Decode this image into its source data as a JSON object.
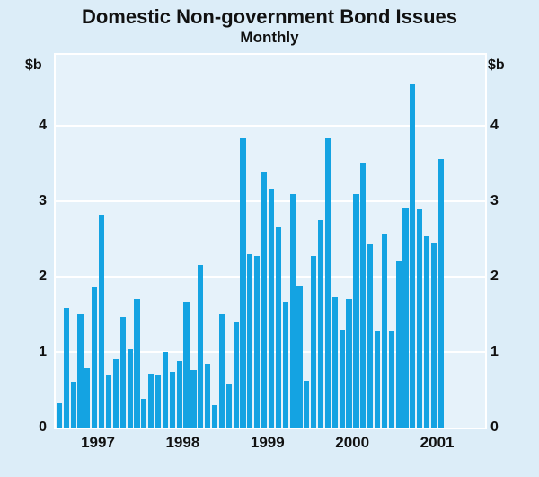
{
  "header": {
    "title": "Domestic Non-government Bond Issues",
    "subtitle": "Monthly"
  },
  "axes": {
    "left_unit": "$b",
    "right_unit": "$b"
  },
  "chart_data": {
    "type": "bar",
    "title": "Domestic Non-government Bond Issues",
    "subtitle": "Monthly",
    "ylabel_left": "$b",
    "ylabel_right": "$b",
    "ylim": [
      0,
      4.94
    ],
    "y_ticks": [
      0,
      1,
      2,
      3,
      4
    ],
    "grid": true,
    "gridline_color": "#ffffff",
    "bar_color": "#14a3e2",
    "plot_bg": "#e6f2fa",
    "page_bg": "#dcedf8",
    "x_year_labels": [
      "1997",
      "1998",
      "1999",
      "2000",
      "2001"
    ],
    "x_start_month": "1997-01",
    "x_end_month": "2001-07",
    "values": [
      0.32,
      1.58,
      0.61,
      1.5,
      0.78,
      1.86,
      2.82,
      0.69,
      0.9,
      1.47,
      1.05,
      1.7,
      0.38,
      0.72,
      0.7,
      1.0,
      0.74,
      0.88,
      1.67,
      0.76,
      2.15,
      0.85,
      0.3,
      1.5,
      0.58,
      1.41,
      3.83,
      2.3,
      2.27,
      3.39,
      3.17,
      2.65,
      1.67,
      3.1,
      1.88,
      0.62,
      2.27,
      2.75,
      3.83,
      1.73,
      1.3,
      1.7,
      3.1,
      3.51,
      2.43,
      1.28,
      2.57,
      1.28,
      2.21,
      2.91,
      4.55,
      2.89,
      2.53,
      2.45,
      3.56
    ]
  }
}
